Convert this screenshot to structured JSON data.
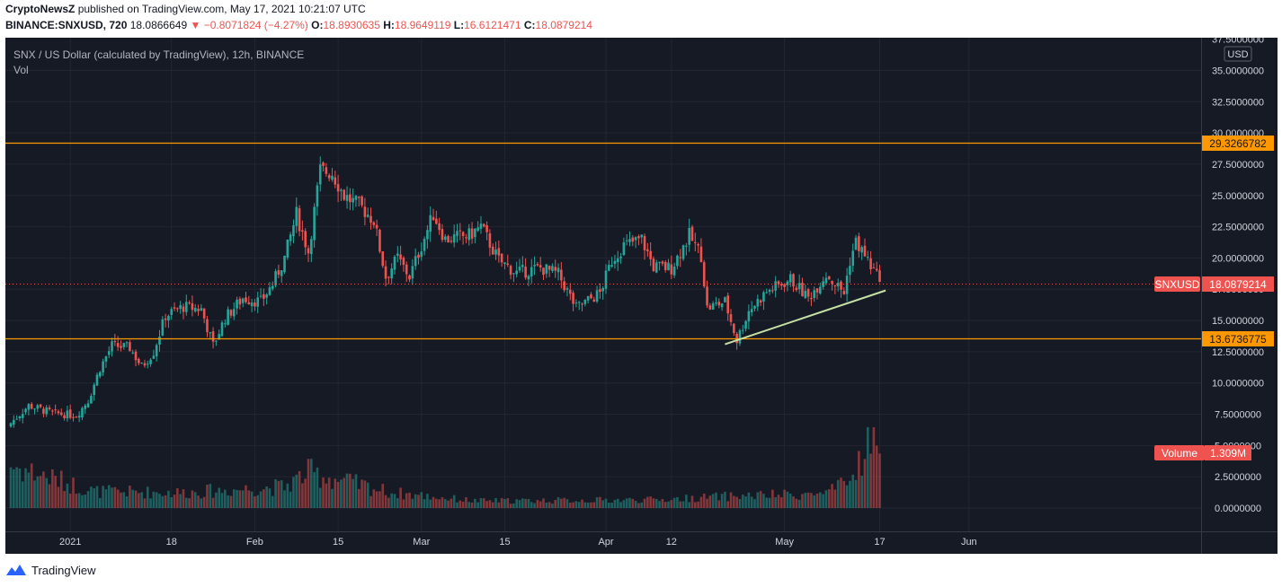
{
  "header": {
    "author": "CryptoNewsZ",
    "published_text": "published on TradingView.com, May 17, 2021 10:21:07 UTC",
    "symbol": "BINANCE:SNXUSD, 720",
    "last": "18.0866649",
    "change_arrow": "▼",
    "change": "−0.8071824 (−4.27%)",
    "o_label": "O:",
    "o_value": "18.8930635",
    "h_label": "H:",
    "h_value": "18.9649119",
    "l_label": "L:",
    "l_value": "16.6121471",
    "c_label": "C:",
    "c_value": "18.0879214"
  },
  "legend": {
    "title": "SNX / US Dollar (calculated by TradingView), 12h, BINANCE",
    "vol": "Vol"
  },
  "axis": {
    "currency": "USD",
    "y_ticks": [
      "37.5000000",
      "35.0000000",
      "32.5000000",
      "30.0000000",
      "27.5000000",
      "25.0000000",
      "22.5000000",
      "20.0000000",
      "17.5000000",
      "15.0000000",
      "12.5000000",
      "10.0000000",
      "7.5000000",
      "5.0000000",
      "2.5000000",
      "0.0000000"
    ],
    "x_ticks": [
      "2021",
      "18",
      "Feb",
      "15",
      "Mar",
      "15",
      "Apr",
      "12",
      "May",
      "17",
      "Jun"
    ]
  },
  "badges": {
    "resistance": "29.3266782",
    "support": "13.6736775",
    "symbol": "SNXUSD",
    "price": "18.0879214",
    "volume_label": "Volume",
    "volume_value": "1.309M"
  },
  "footer": {
    "brand": "TradingView"
  },
  "colors": {
    "background": "#161a25",
    "up": "#26a69a",
    "down": "#ef5350",
    "level_line": "#ff9800",
    "trend_line": "#c5e1a5",
    "price_line": "#ef5350"
  },
  "chart_data": {
    "type": "candlestick",
    "interval": "12h",
    "x_range": [
      "2020-12-22",
      "2021-06-05"
    ],
    "price_range": [
      0,
      37.5
    ],
    "horizontal_levels": [
      29.3266782,
      13.6736775
    ],
    "last_price": 18.0879214,
    "trend_line": [
      [
        "2021-04-21",
        13.1
      ],
      [
        "2021-05-18",
        17.4
      ]
    ],
    "close_anchors": [
      [
        "2020-12-22",
        6.8
      ],
      [
        "2020-12-25",
        8.2
      ],
      [
        "2020-12-29",
        7.6
      ],
      [
        "2021-01-02",
        7.4
      ],
      [
        "2021-01-04",
        8.6
      ],
      [
        "2021-01-06",
        11.2
      ],
      [
        "2021-01-08",
        13.0
      ],
      [
        "2021-01-11",
        12.8
      ],
      [
        "2021-01-13",
        11.3
      ],
      [
        "2021-01-15",
        12.5
      ],
      [
        "2021-01-17",
        15.4
      ],
      [
        "2021-01-20",
        16.1
      ],
      [
        "2021-01-23",
        15.9
      ],
      [
        "2021-01-25",
        13.0
      ],
      [
        "2021-01-27",
        15.2
      ],
      [
        "2021-01-30",
        16.8
      ],
      [
        "2021-02-02",
        16.5
      ],
      [
        "2021-02-04",
        17.9
      ],
      [
        "2021-02-06",
        20.0
      ],
      [
        "2021-02-08",
        23.5
      ],
      [
        "2021-02-10",
        20.5
      ],
      [
        "2021-02-12",
        27.0
      ],
      [
        "2021-02-14",
        26.8
      ],
      [
        "2021-02-16",
        25.0
      ],
      [
        "2021-02-19",
        24.0
      ],
      [
        "2021-02-21",
        23.0
      ],
      [
        "2021-02-23",
        18.5
      ],
      [
        "2021-02-25",
        20.0
      ],
      [
        "2021-02-27",
        18.5
      ],
      [
        "2021-03-01",
        21.0
      ],
      [
        "2021-03-03",
        23.5
      ],
      [
        "2021-03-05",
        21.5
      ],
      [
        "2021-03-09",
        21.8
      ],
      [
        "2021-03-11",
        22.5
      ],
      [
        "2021-03-14",
        19.8
      ],
      [
        "2021-03-17",
        18.8
      ],
      [
        "2021-03-21",
        19.2
      ],
      [
        "2021-03-24",
        18.7
      ],
      [
        "2021-03-27",
        16.0
      ],
      [
        "2021-03-31",
        17.2
      ],
      [
        "2021-04-02",
        19.8
      ],
      [
        "2021-04-04",
        21.0
      ],
      [
        "2021-04-07",
        21.5
      ],
      [
        "2021-04-09",
        19.3
      ],
      [
        "2021-04-12",
        19.2
      ],
      [
        "2021-04-15",
        21.8
      ],
      [
        "2021-04-17",
        20.2
      ],
      [
        "2021-04-18",
        16.0
      ],
      [
        "2021-04-21",
        16.5
      ],
      [
        "2021-04-23",
        13.4
      ],
      [
        "2021-04-25",
        15.8
      ],
      [
        "2021-04-28",
        17.3
      ],
      [
        "2021-05-02",
        18.3
      ],
      [
        "2021-05-05",
        16.8
      ],
      [
        "2021-05-08",
        18.7
      ],
      [
        "2021-05-11",
        17.2
      ],
      [
        "2021-05-12",
        19.8
      ],
      [
        "2021-05-13",
        21.3
      ],
      [
        "2021-05-15",
        19.8
      ],
      [
        "2021-05-17",
        18.09
      ]
    ],
    "volume_anchors": [
      [
        "2020-12-22",
        3.6
      ],
      [
        "2021-01-05",
        1.4
      ],
      [
        "2021-01-20",
        1.3
      ],
      [
        "2021-02-06",
        1.8
      ],
      [
        "2021-02-10",
        3.0
      ],
      [
        "2021-02-24",
        1.3
      ],
      [
        "2021-03-10",
        0.6
      ],
      [
        "2021-04-10",
        0.7
      ],
      [
        "2021-04-22",
        1.0
      ],
      [
        "2021-05-08",
        1.2
      ],
      [
        "2021-05-12",
        2.2
      ],
      [
        "2021-05-15",
        5.5
      ],
      [
        "2021-05-17",
        4.6
      ]
    ]
  }
}
